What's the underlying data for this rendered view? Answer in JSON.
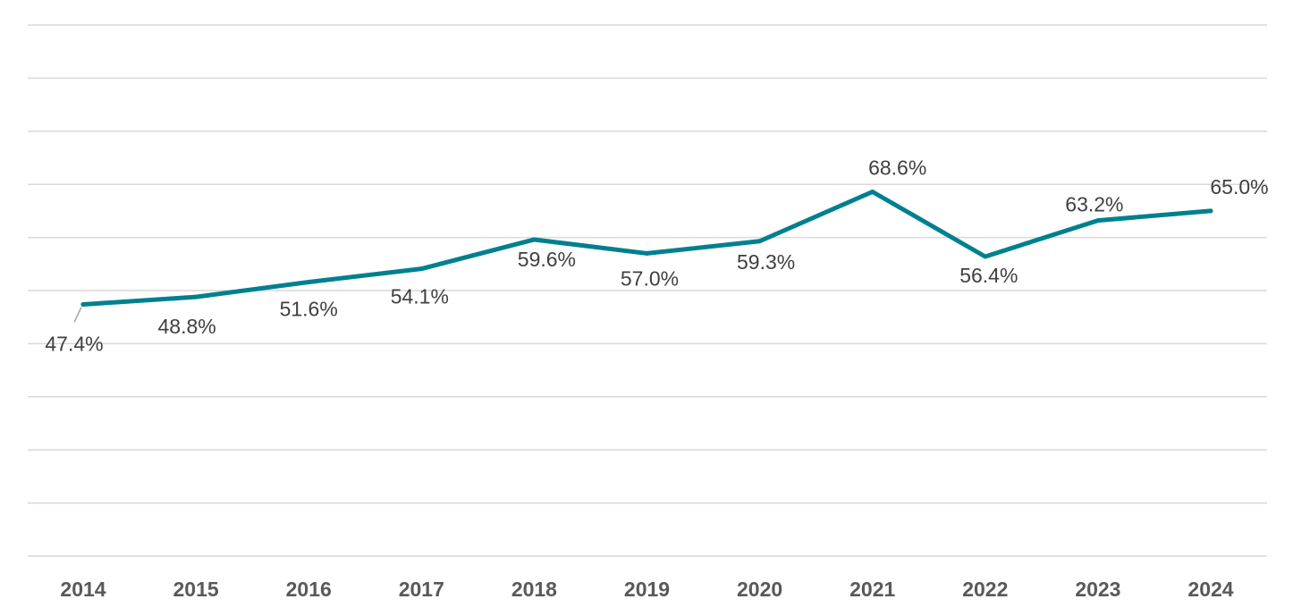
{
  "chart_data": {
    "type": "line",
    "title": "",
    "xlabel": "",
    "ylabel": "",
    "categories": [
      "2014",
      "2015",
      "2016",
      "2017",
      "2018",
      "2019",
      "2020",
      "2021",
      "2022",
      "2023",
      "2024"
    ],
    "series": [
      {
        "values": [
          47.4,
          48.8,
          51.6,
          54.1,
          59.6,
          57.0,
          59.3,
          68.6,
          56.4,
          63.2,
          65.0
        ],
        "labels": [
          "47.4%",
          "48.8%",
          "51.6%",
          "54.1%",
          "59.6%",
          "57.0%",
          "59.3%",
          "68.6%",
          "56.4%",
          "63.2%",
          "65.0%"
        ],
        "color": "#00808f"
      }
    ],
    "ylim": [
      0,
      100
    ],
    "grid": true,
    "y_tick_labels_shown": false,
    "legend": "none"
  }
}
